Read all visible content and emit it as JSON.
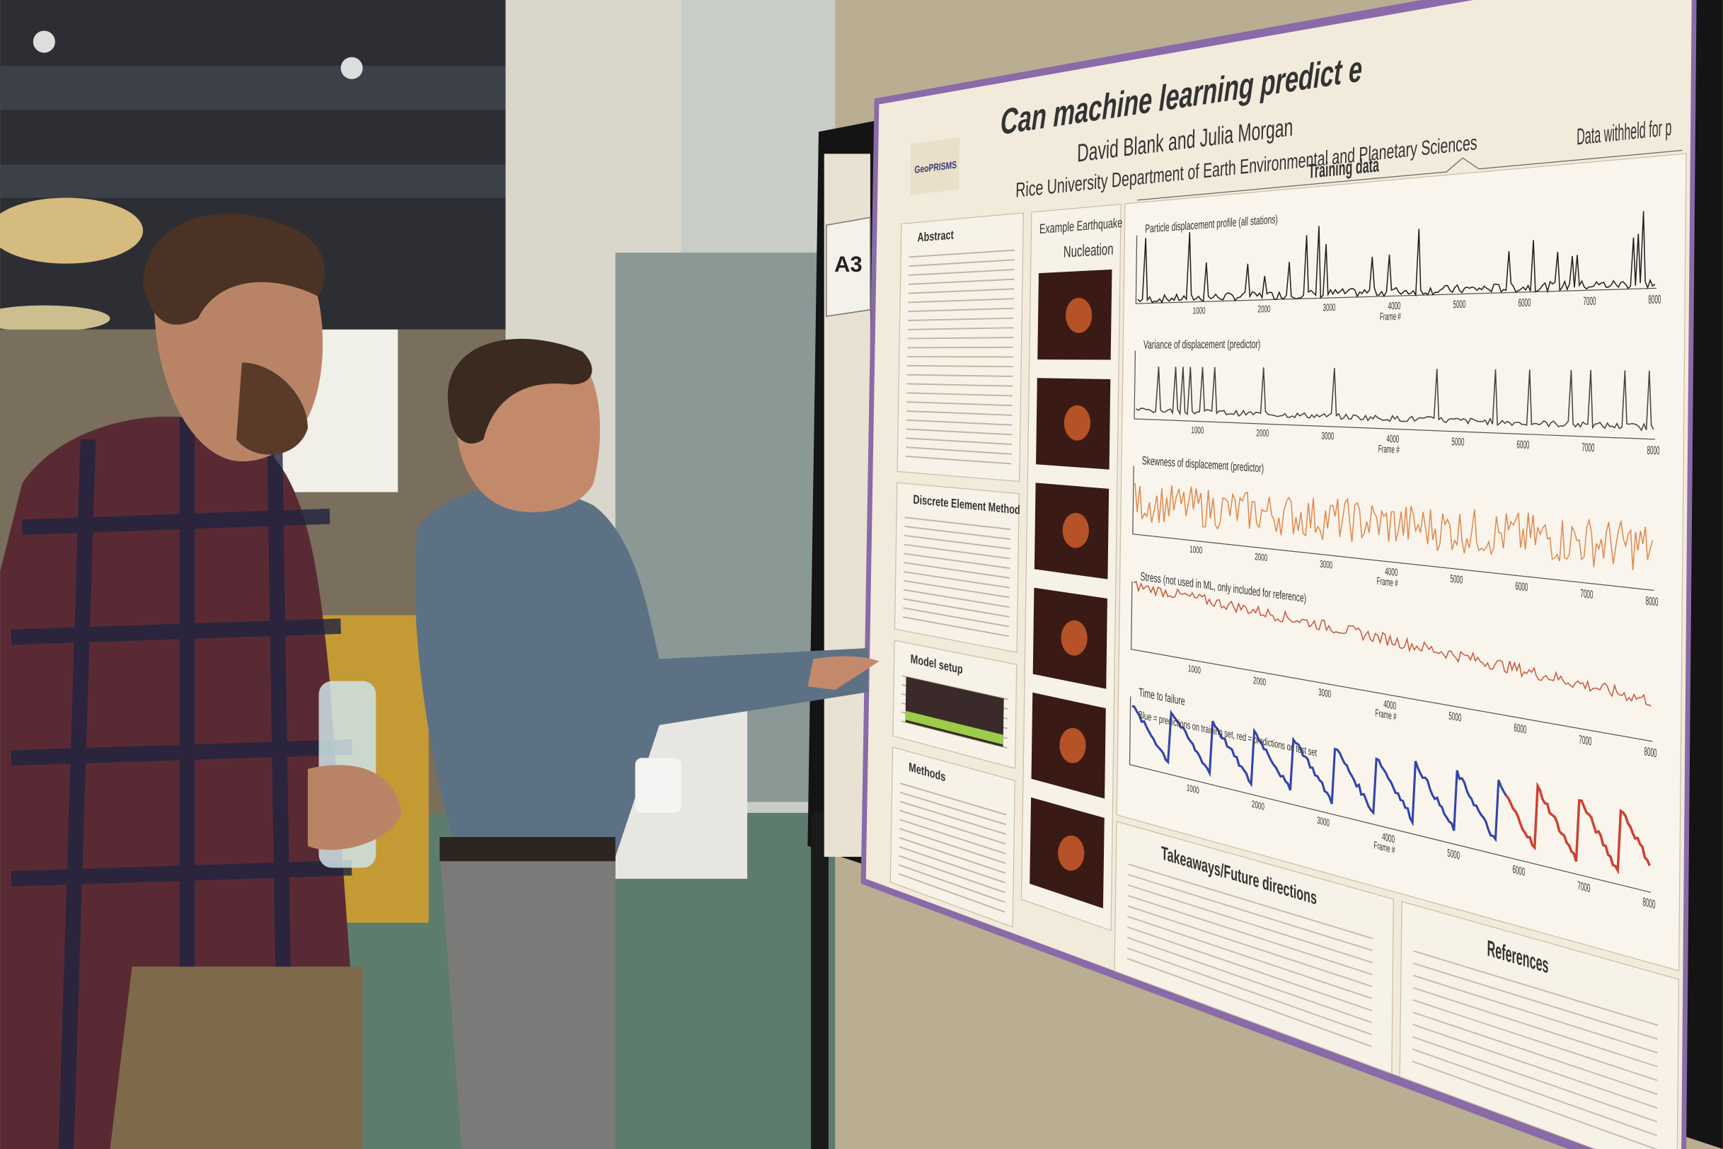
{
  "poster": {
    "sign": "A3",
    "logo": "GeoPRISMS",
    "title": "Can machine learning predict e",
    "authors": "David Blank and Julia Morgan",
    "affiliation": "Rice University Department of Earth Environmental and Planetary Sciences",
    "left_column": {
      "abstract": "Abstract",
      "dem": "Discrete Element Method",
      "model": "Model setup",
      "methods": "Methods"
    },
    "middle_column": {
      "heading": "Example Earthquake",
      "subheading": "Nucleation"
    },
    "figure": {
      "training": "Training data",
      "withheld": "Data withheld for p",
      "panels": [
        "Particle displacement profile (all stations)",
        "Variance of displacement (predictor)",
        "Skewness of displacement (predictor)",
        "Stress (not used in ML, only included for reference)",
        "Time to failure"
      ],
      "note": "Blue = predictions on training set, red = predictions on test set",
      "x_label": "Frame #",
      "x_ticks": [
        1000,
        2000,
        3000,
        4000,
        5000,
        6000,
        7000,
        8000
      ]
    },
    "takeaways": "Takeaways/Future directions",
    "references": "References"
  }
}
